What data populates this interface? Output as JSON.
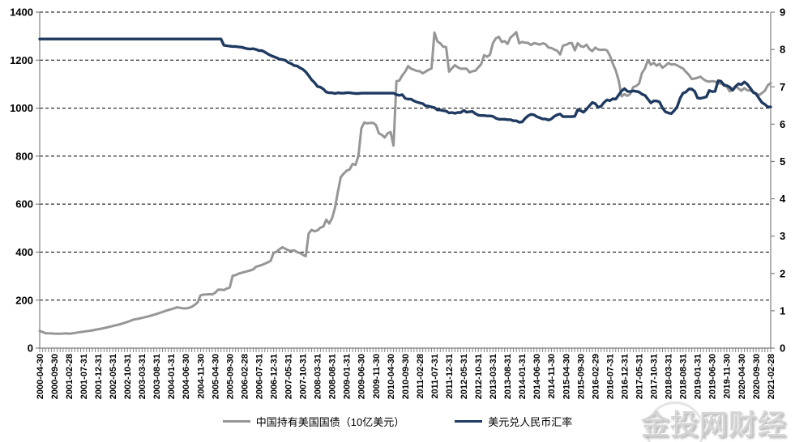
{
  "watermark": {
    "text": "金投网财经"
  },
  "colors": {
    "background": "#ffffff",
    "axis": "#808080",
    "gridline": "#000000",
    "tick_label": "#000000",
    "holdings_series": "#969696",
    "fx_series": "#1f3a60"
  },
  "chart_data": {
    "type": "line",
    "title": "",
    "grid": "horizontal-dashed",
    "legend_position": "bottom-center",
    "x_start": "2000-04",
    "x_interval_months": 1,
    "x_label_every_n_points": 5,
    "x_tick_labels": [
      "2000-04-30",
      "2000-09-30",
      "2001-02-28",
      "2001-07-31",
      "2001-12-31",
      "2002-05-31",
      "2002-10-31",
      "2003-03-31",
      "2003-08-31",
      "2004-01-31",
      "2004-06-30",
      "2004-11-30",
      "2005-04-30",
      "2005-09-30",
      "2006-02-28",
      "2006-07-31",
      "2006-12-31",
      "2007-05-31",
      "2007-10-31",
      "2008-03-31",
      "2008-08-31",
      "2009-01-31",
      "2009-06-30",
      "2009-11-30",
      "2010-04-30",
      "2010-09-30",
      "2011-02-28",
      "2011-07-31",
      "2011-12-31",
      "2012-05-31",
      "2012-10-31",
      "2013-03-31",
      "2013-08-31",
      "2014-01-31",
      "2014-06-30",
      "2014-11-30",
      "2015-04-30",
      "2015-09-30",
      "2016-02-29",
      "2016-07-31",
      "2016-12-31",
      "2017-05-31",
      "2017-10-31",
      "2018-03-31",
      "2018-08-31",
      "2019-01-31",
      "2019-06-30",
      "2019-11-30",
      "2020-04-30",
      "2020-09-30",
      "2021-02-28"
    ],
    "left_axis": {
      "min": 0,
      "max": 1400,
      "ticks": [
        0,
        200,
        400,
        600,
        800,
        1000,
        1200,
        1400
      ]
    },
    "right_axis": {
      "min": 0,
      "max": 9,
      "ticks": [
        0,
        1,
        2,
        3,
        4,
        5,
        6,
        7,
        8,
        9
      ]
    },
    "series": [
      {
        "name": "中国持有美国国债（10亿美元）",
        "axis": "left",
        "color": "#969696",
        "line_width": 3,
        "values": [
          71.4,
          67,
          62,
          61.5,
          61,
          60.4,
          60,
          60.1,
          60.3,
          61.5,
          60.2,
          61,
          63.2,
          65,
          66.7,
          68.4,
          70.1,
          71.8,
          74,
          76.2,
          78.6,
          80.9,
          83.4,
          86,
          89,
          92,
          95.2,
          97.9,
          101.3,
          105.1,
          108.8,
          113.5,
          118.4,
          120.7,
          123.2,
          125.8,
          128.9,
          132,
          135.4,
          138.8,
          142.3,
          146.4,
          150.6,
          154.8,
          159,
          162.3,
          166.1,
          170,
          168,
          165.5,
          165.4,
          167.2,
          172.1,
          180,
          190,
          220,
          222.9,
          223.5,
          224.8,
          223.5,
          230.3,
          243.2,
          243.5,
          242,
          248.1,
          252.3,
          301.7,
          303.9,
          310,
          313.4,
          316.8,
          320.1,
          323.6,
          327.5,
          339.1,
          342.9,
          346.9,
          352,
          357.1,
          363.5,
          396.9,
          401,
          412,
          420.2,
          414,
          407.4,
          405.5,
          407.9,
          400.2,
          396.7,
          388.9,
          382.9,
          477.6,
          492.6,
          486.9,
          490.6,
          502,
          506.4,
          535.1,
          518.8,
          541.4,
          585,
          652.9,
          713.2,
          727.4,
          739.6,
          744.2,
          767.9,
          763.5,
          801.5,
          915.8,
          939.9,
          936.5,
          938.3,
          938.8,
          929.6,
          894.8,
          889,
          877.5,
          895.2,
          900.2,
          843.7,
          1112.1,
          1115.1,
          1136.5,
          1151.9,
          1175.3,
          1164.1,
          1160.1,
          1154.7,
          1154.1,
          1144.9,
          1152.5,
          1159.8,
          1165.5,
          1314.9,
          1278.5,
          1269.9,
          1256,
          1254.6,
          1151.9,
          1166.2,
          1178.9,
          1170.3,
          1164,
          1164.4,
          1164.3,
          1149.5,
          1153.6,
          1155.6,
          1169.9,
          1183.1,
          1220.4,
          1214.2,
          1222.9,
          1270.3,
          1290.8,
          1297.3,
          1275.8,
          1279.3,
          1268.1,
          1293.8,
          1304.5,
          1316.7,
          1270,
          1275.8,
          1272.9,
          1272.1,
          1263.2,
          1270.9,
          1268.4,
          1264.9,
          1270.1,
          1266.3,
          1252.7,
          1250.4,
          1244.3,
          1239.1,
          1223.7,
          1261,
          1263.4,
          1270.3,
          1271.2,
          1240.8,
          1270.5,
          1258,
          1254.8,
          1264.5,
          1246.1,
          1237.3,
          1252.3,
          1244.6,
          1242.8,
          1244,
          1240.8,
          1218.7,
          1185.1,
          1157,
          1115.7,
          1049.3,
          1058.4,
          1051.1,
          1059.7,
          1087.6,
          1092.2,
          1102.2,
          1146.5,
          1166,
          1200.5,
          1180.8,
          1189.2,
          1176.6,
          1184.9,
          1168.2,
          1176.7,
          1187.7,
          1181.9,
          1183.1,
          1178.7,
          1171,
          1165.1,
          1151.4,
          1138.9,
          1121.5,
          1123.5,
          1126.7,
          1130.9,
          1120.5,
          1113,
          1110.2,
          1112.5,
          1110.4,
          1103.5,
          1102.4,
          1101.7,
          1089.1,
          1069.9,
          1078.6,
          1092.3,
          1081.6,
          1072.8,
          1083.7,
          1074.4,
          1073.4,
          1068.3,
          1061.7,
          1054,
          1063,
          1072.3,
          1095.2,
          1104.4
        ]
      },
      {
        "name": "美元兑人民币汇率",
        "axis": "right",
        "color": "#1f3a60",
        "line_width": 3.4,
        "values": [
          8.28,
          8.28,
          8.28,
          8.28,
          8.28,
          8.28,
          8.28,
          8.28,
          8.28,
          8.28,
          8.28,
          8.28,
          8.28,
          8.28,
          8.28,
          8.28,
          8.28,
          8.28,
          8.28,
          8.28,
          8.28,
          8.28,
          8.28,
          8.28,
          8.28,
          8.28,
          8.28,
          8.28,
          8.28,
          8.28,
          8.28,
          8.28,
          8.28,
          8.28,
          8.28,
          8.28,
          8.28,
          8.28,
          8.28,
          8.28,
          8.28,
          8.28,
          8.28,
          8.28,
          8.28,
          8.28,
          8.28,
          8.28,
          8.28,
          8.28,
          8.28,
          8.28,
          8.28,
          8.28,
          8.28,
          8.28,
          8.28,
          8.28,
          8.28,
          8.28,
          8.28,
          8.28,
          8.28,
          8.11,
          8.1,
          8.09,
          8.08,
          8.08,
          8.07,
          8.06,
          8.04,
          8.02,
          8.01,
          8.02,
          8,
          7.97,
          7.97,
          7.93,
          7.88,
          7.84,
          7.81,
          7.78,
          7.74,
          7.73,
          7.71,
          7.65,
          7.62,
          7.57,
          7.56,
          7.51,
          7.47,
          7.4,
          7.3,
          7.19,
          7.11,
          7.01,
          6.99,
          6.94,
          6.86,
          6.84,
          6.84,
          6.82,
          6.84,
          6.83,
          6.83,
          6.84,
          6.84,
          6.83,
          6.82,
          6.82,
          6.83,
          6.83,
          6.83,
          6.83,
          6.83,
          6.83,
          6.83,
          6.83,
          6.83,
          6.83,
          6.83,
          6.83,
          6.79,
          6.77,
          6.79,
          6.69,
          6.67,
          6.67,
          6.62,
          6.59,
          6.57,
          6.55,
          6.49,
          6.48,
          6.46,
          6.44,
          6.38,
          6.38,
          6.36,
          6.35,
          6.3,
          6.31,
          6.29,
          6.31,
          6.31,
          6.37,
          6.32,
          6.33,
          6.34,
          6.28,
          6.24,
          6.23,
          6.23,
          6.22,
          6.22,
          6.21,
          6.16,
          6.13,
          6.13,
          6.13,
          6.12,
          6.12,
          6.09,
          6.09,
          6.05,
          6.06,
          6.15,
          6.22,
          6.26,
          6.25,
          6.2,
          6.17,
          6.14,
          6.14,
          6.11,
          6.14,
          6.21,
          6.25,
          6.27,
          6.2,
          6.2,
          6.2,
          6.2,
          6.21,
          6.39,
          6.36,
          6.32,
          6.4,
          6.49,
          6.58,
          6.55,
          6.45,
          6.48,
          6.58,
          6.65,
          6.63,
          6.68,
          6.67,
          6.78,
          6.89,
          6.95,
          6.88,
          6.87,
          6.89,
          6.88,
          6.86,
          6.8,
          6.77,
          6.67,
          6.57,
          6.62,
          6.62,
          6.59,
          6.43,
          6.33,
          6.3,
          6.28,
          6.36,
          6.46,
          6.69,
          6.83,
          6.86,
          6.94,
          6.94,
          6.88,
          6.7,
          6.69,
          6.71,
          6.73,
          6.9,
          6.87,
          6.88,
          7.16,
          7.15,
          7.04,
          7.03,
          6.99,
          6.91,
          7.01,
          7.08,
          7.06,
          7.13,
          7.07,
          6.97,
          6.85,
          6.81,
          6.69,
          6.58,
          6.53,
          6.46,
          6.46
        ]
      }
    ]
  }
}
